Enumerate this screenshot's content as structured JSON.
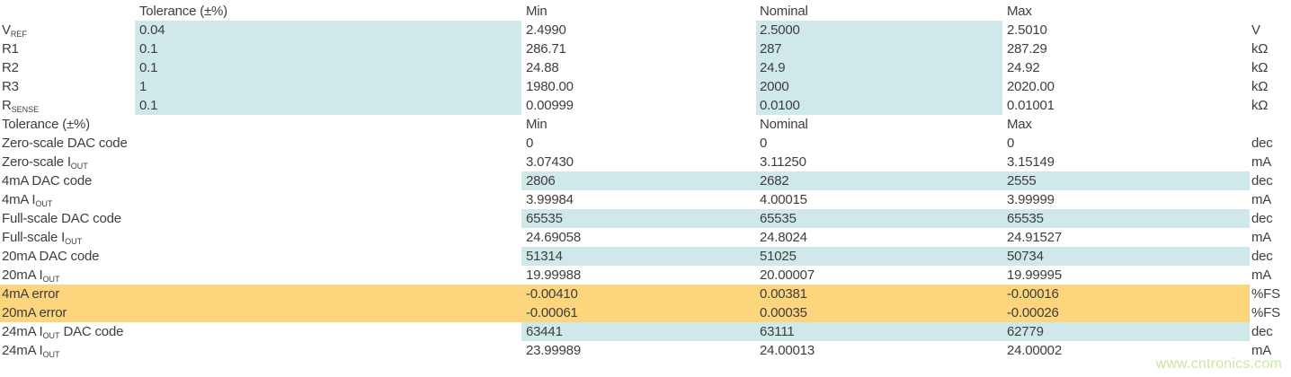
{
  "colors": {
    "highlight_cyan": "#cfe8ea",
    "highlight_orange": "#fcd57c",
    "text": "#3e3e3e",
    "watermark_green": "#c9e7a2"
  },
  "watermark": {
    "text": "www.cntronics.com"
  },
  "table": {
    "column_keys": [
      "label",
      "tolerance",
      "min",
      "nominal",
      "max",
      "unit"
    ],
    "rows": [
      {
        "header": true,
        "hl": "none",
        "label": "",
        "tolerance": "Tolerance (±%)",
        "min": "Min",
        "nominal": "Nominal",
        "max": "Max",
        "unit": ""
      },
      {
        "header": false,
        "hl": "sec1",
        "label": "V",
        "label_sub": "REF",
        "tolerance": "0.04",
        "min": "2.4990",
        "nominal": "2.5000",
        "max": "2.5010",
        "unit": "V"
      },
      {
        "header": false,
        "hl": "sec1",
        "label": "R1",
        "tolerance": "0.1",
        "min": "286.71",
        "nominal": "287",
        "max": "287.29",
        "unit": "kΩ"
      },
      {
        "header": false,
        "hl": "sec1",
        "label": "R2",
        "tolerance": "0.1",
        "min": "24.88",
        "nominal": "24.9",
        "max": "24.92",
        "unit": "kΩ"
      },
      {
        "header": false,
        "hl": "sec1",
        "label": "R3",
        "tolerance": "1",
        "min": "1980.00",
        "nominal": "2000",
        "max": "2020.00",
        "unit": "kΩ"
      },
      {
        "header": false,
        "hl": "sec1",
        "label": "R",
        "label_sub": "SENSE",
        "tolerance": "0.1",
        "min": "0.00999",
        "nominal": "0.0100",
        "max": "0.01001",
        "unit": "kΩ"
      },
      {
        "header": true,
        "hl": "none",
        "label": "Tolerance (±%)",
        "tolerance": "",
        "min": "Min",
        "nominal": "Nominal",
        "max": "Max",
        "unit": ""
      },
      {
        "header": false,
        "hl": "none",
        "label": "Zero-scale DAC code",
        "tolerance": "",
        "min": "0",
        "nominal": "0",
        "max": "0",
        "unit": "dec"
      },
      {
        "header": false,
        "hl": "none",
        "label": "Zero-scale I",
        "label_sub": "OUT",
        "tolerance": "",
        "min": "3.07430",
        "nominal": "3.11250",
        "max": "3.15149",
        "unit": "mA"
      },
      {
        "header": false,
        "hl": "cyan",
        "label": "4mA DAC code",
        "tolerance": "",
        "min": "2806",
        "nominal": "2682",
        "max": "2555",
        "unit": "dec"
      },
      {
        "header": false,
        "hl": "none",
        "label": "4mA I",
        "label_sub": "OUT",
        "tolerance": "",
        "min": "3.99984",
        "nominal": "4.00015",
        "max": "3.99999",
        "unit": "mA"
      },
      {
        "header": false,
        "hl": "cyan",
        "label": "Full-scale DAC code",
        "tolerance": "",
        "min": "65535",
        "nominal": "65535",
        "max": "65535",
        "unit": "dec"
      },
      {
        "header": false,
        "hl": "none",
        "label": "Full-scale I",
        "label_sub": "OUT",
        "tolerance": "",
        "min": "24.69058",
        "nominal": "24.8024",
        "max": "24.91527",
        "unit": "mA"
      },
      {
        "header": false,
        "hl": "cyan",
        "label": "20mA DAC code",
        "tolerance": "",
        "min": "51314",
        "nominal": "51025",
        "max": "50734",
        "unit": "dec"
      },
      {
        "header": false,
        "hl": "none",
        "label": "20mA I",
        "label_sub": "OUT",
        "tolerance": "",
        "min": "19.99988",
        "nominal": "20.00007",
        "max": "19.99995",
        "unit": "mA"
      },
      {
        "header": false,
        "hl": "orange",
        "label": "4mA error",
        "tolerance": "",
        "min": "-0.00410",
        "nominal": "0.00381",
        "max": "-0.00016",
        "unit": "%FS"
      },
      {
        "header": false,
        "hl": "orange",
        "label": "20mA error",
        "tolerance": "",
        "min": "-0.00061",
        "nominal": "0.00035",
        "max": "-0.00026",
        "unit": "%FS"
      },
      {
        "header": false,
        "hl": "cyan",
        "label": "24mA I",
        "label_sub": "OUT",
        "label_post": " DAC code",
        "tolerance": "",
        "min": "63441",
        "nominal": "63111",
        "max": "62779",
        "unit": "dec"
      },
      {
        "header": false,
        "hl": "none",
        "label": "24mA I",
        "label_sub": "OUT",
        "tolerance": "",
        "min": "23.99989",
        "nominal": "24.00013",
        "max": "24.00002",
        "unit": "mA"
      }
    ]
  }
}
